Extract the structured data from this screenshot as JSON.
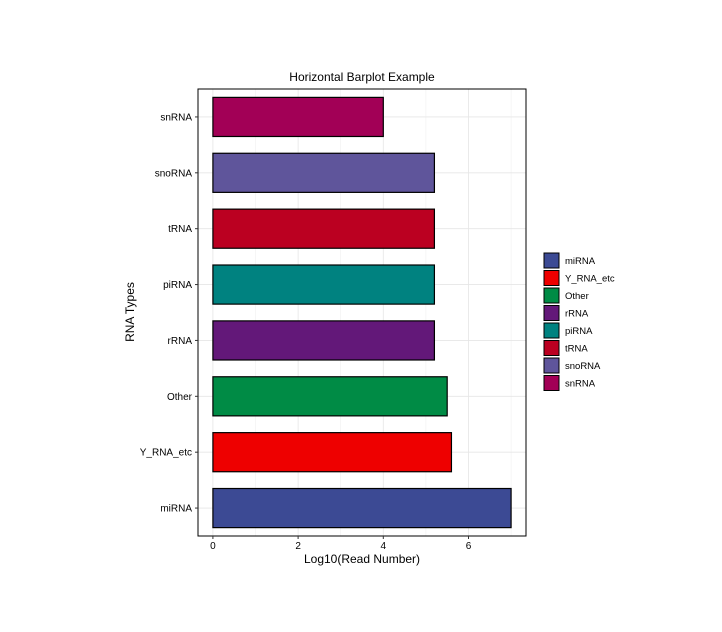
{
  "chart_data": {
    "type": "bar",
    "orientation": "horizontal",
    "title": "Horizontal  Barplot Example",
    "xlabel": "Log10(Read Number)",
    "ylabel": "RNA Types",
    "categories": [
      "miRNA",
      "Y_RNA_etc",
      "Other",
      "rRNA",
      "piRNA",
      "tRNA",
      "snoRNA",
      "snRNA"
    ],
    "values": [
      7.0,
      5.6,
      5.5,
      5.2,
      5.2,
      5.2,
      5.2,
      4.0
    ],
    "colors": [
      "#3C4A94",
      "#EE0000",
      "#008B45",
      "#631879",
      "#008280",
      "#BB0021",
      "#5F559B",
      "#A20056"
    ],
    "xlim": [
      -0.35,
      7.35
    ],
    "xticks": [
      0,
      2,
      4,
      6
    ],
    "grid": true,
    "legend": {
      "position": "right",
      "entries": [
        "miRNA",
        "Y_RNA_etc",
        "Other",
        "rRNA",
        "piRNA",
        "tRNA",
        "snoRNA",
        "snRNA"
      ]
    }
  }
}
